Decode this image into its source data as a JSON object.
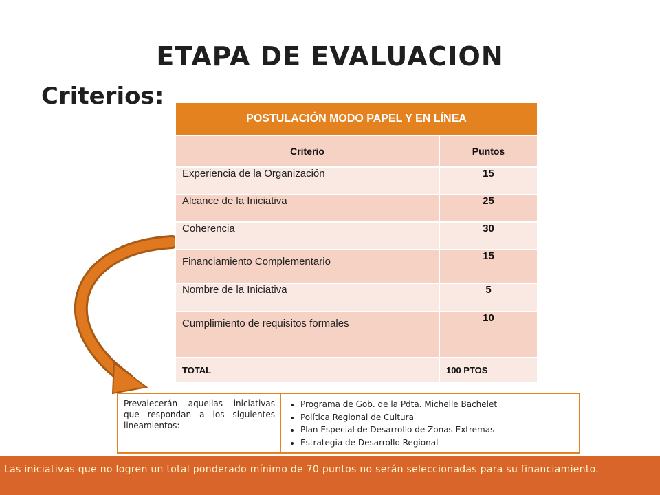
{
  "title": "ETAPA DE EVALUACION",
  "subtitle": "Criterios:",
  "table": {
    "header": "POSTULACIÓN MODO PAPEL Y EN LÍNEA",
    "col_criterio": "Criterio",
    "col_puntos": "Puntos",
    "rows": [
      {
        "criterio": "Experiencia de la Organización",
        "puntos": "15"
      },
      {
        "criterio": "Alcance de la Iniciativa",
        "puntos": "25"
      },
      {
        "criterio": "Coherencia",
        "puntos": "30"
      },
      {
        "criterio": "Financiamiento Complementario",
        "puntos": "15"
      },
      {
        "criterio": "Nombre de la Iniciativa",
        "puntos": "5"
      },
      {
        "criterio": "Cumplimiento de requisitos formales",
        "puntos": "10"
      }
    ],
    "total_label": "TOTAL",
    "total_value": "100 PTOS"
  },
  "note": {
    "intro": "Prevalecerán aquellas iniciativas que respondan a los siguientes lineamientos:",
    "items": [
      "Programa de Gob. de la Pdta. Michelle Bachelet",
      "Política Regional de Cultura",
      "Plan Especial de Desarrollo de Zonas Extremas",
      "Estrategia de Desarrollo Regional"
    ]
  },
  "footer": "Las iniciativas que no logren un total ponderado mínimo de 70 puntos no serán seleccionadas para su financiamiento.",
  "colors": {
    "accent": "#e58220",
    "row_dark": "#f5d2c4",
    "row_light": "#fae9e3",
    "footer_bg": "#d9652b",
    "arrow": "#e0781f"
  }
}
